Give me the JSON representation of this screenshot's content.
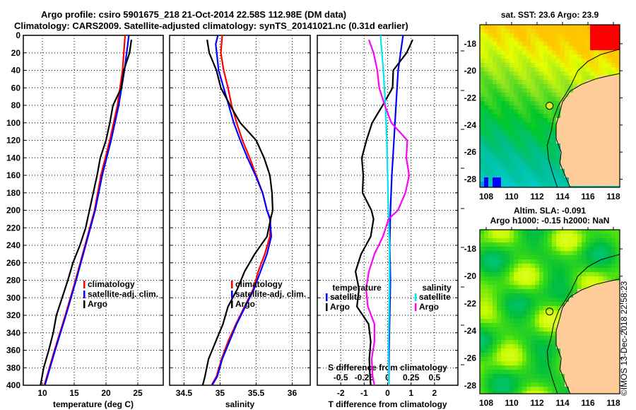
{
  "header": {
    "line1": "Argo profile: csiro 5901675_218 21-Oct-2014 22.58S 112.98E (DM data)",
    "line2": "Climatology: CARS2009. Satellite-adjusted climatology: synTS_20141021.nc (0.31d earlier)"
  },
  "colors": {
    "climatology": "#ff0000",
    "satellite": "#0000ff",
    "argo": "#000000",
    "salinity_satellite": "#00e5ee",
    "salinity_argo": "#ff00ff",
    "land": "#ffcc99"
  },
  "chart_data": [
    {
      "type": "line",
      "title": "",
      "xlabel": "temperature (deg C)",
      "ylabel": "",
      "xlim": [
        7,
        29
      ],
      "ylim": [
        400,
        0
      ],
      "xticks": [
        10,
        15,
        20,
        25
      ],
      "yticks": [
        0,
        20,
        40,
        60,
        80,
        100,
        120,
        140,
        160,
        180,
        200,
        220,
        240,
        260,
        280,
        300,
        320,
        340,
        360,
        380,
        400
      ],
      "grid": true,
      "legend_position": "center-right-lower",
      "legend": [
        "climatology",
        "satellite-adj. clim.",
        "Argo"
      ],
      "series": [
        {
          "name": "climatology",
          "color": "#ff0000",
          "depth": [
            0,
            40,
            80,
            120,
            160,
            200,
            240,
            280,
            320,
            360,
            400
          ],
          "values": [
            23.0,
            22.6,
            21.8,
            20.6,
            19.2,
            18.2,
            16.7,
            15.2,
            13.6,
            11.9,
            10.3
          ]
        },
        {
          "name": "satellite-adj. clim.",
          "color": "#0000ff",
          "depth": [
            0,
            40,
            80,
            120,
            160,
            200,
            240,
            280,
            320,
            360,
            400
          ],
          "values": [
            23.6,
            22.9,
            22.0,
            20.8,
            19.4,
            18.3,
            16.8,
            15.3,
            13.7,
            12.0,
            10.4
          ]
        },
        {
          "name": "Argo",
          "color": "#000000",
          "depth": [
            5,
            20,
            40,
            60,
            80,
            100,
            120,
            140,
            160,
            180,
            200,
            220,
            240,
            260,
            280,
            300,
            320,
            340,
            360,
            380,
            400
          ],
          "values": [
            24.0,
            23.7,
            22.8,
            22.4,
            21.1,
            20.6,
            20.0,
            19.1,
            18.6,
            18.0,
            17.4,
            16.8,
            15.9,
            14.8,
            14.0,
            13.1,
            12.2,
            11.7,
            11.0,
            10.2,
            9.7
          ]
        }
      ]
    },
    {
      "type": "line",
      "title": "",
      "xlabel": "salinity",
      "ylabel": "",
      "xlim": [
        34.3,
        36.25
      ],
      "ylim": [
        400,
        0
      ],
      "xticks": [
        34.5,
        35,
        35.5,
        36
      ],
      "grid": true,
      "legend_position": "center-right-lower",
      "legend": [
        "climatology",
        "satellite-adj. clim.",
        "Argo"
      ],
      "series": [
        {
          "name": "climatology",
          "color": "#ff0000",
          "depth": [
            0,
            20,
            40,
            60,
            80,
            100,
            120,
            140,
            160,
            180,
            200,
            210,
            230,
            250,
            270,
            290,
            310,
            330,
            350,
            370,
            390,
            400
          ],
          "values": [
            35.03,
            35.01,
            35.05,
            35.11,
            35.16,
            35.23,
            35.31,
            35.41,
            35.5,
            35.59,
            35.65,
            35.7,
            35.69,
            35.62,
            35.53,
            35.46,
            35.34,
            35.22,
            35.11,
            35.02,
            34.95,
            34.88
          ]
        },
        {
          "name": "satellite-adj. clim.",
          "color": "#0000ff",
          "depth": [
            0,
            10,
            40,
            60,
            80,
            100,
            120,
            140,
            160,
            180,
            200,
            210,
            230,
            250,
            270,
            290,
            310,
            330,
            350,
            370,
            390,
            400
          ],
          "values": [
            34.97,
            34.94,
            34.98,
            35.05,
            35.12,
            35.19,
            35.28,
            35.38,
            35.49,
            35.59,
            35.65,
            35.69,
            35.71,
            35.65,
            35.56,
            35.47,
            35.35,
            35.23,
            35.13,
            35.03,
            34.96,
            34.89
          ]
        },
        {
          "name": "Argo",
          "color": "#000000",
          "depth": [
            5,
            20,
            40,
            60,
            80,
            100,
            120,
            140,
            160,
            180,
            200,
            210,
            230,
            250,
            270,
            290,
            310,
            330,
            350,
            370,
            390,
            400
          ],
          "values": [
            34.82,
            34.85,
            34.95,
            35.01,
            35.14,
            35.28,
            35.5,
            35.61,
            35.69,
            35.72,
            35.73,
            35.7,
            35.65,
            35.48,
            35.34,
            35.24,
            35.11,
            35.04,
            34.94,
            34.84,
            34.79,
            34.76
          ]
        }
      ]
    },
    {
      "type": "line",
      "title": "",
      "xlabel": "T difference from climatology",
      "xlabel_secondary": "S difference from climatology",
      "xlim": [
        -3,
        3
      ],
      "xlim_secondary": [
        -0.75,
        0.75
      ],
      "ylim": [
        400,
        0
      ],
      "xticks": [
        -2,
        -1,
        0,
        1,
        2
      ],
      "xticks_secondary": [
        "-0.5",
        "-0.25",
        "0",
        "0.25",
        "0.5"
      ],
      "xticks_secondary_values": [
        -0.5,
        -0.25,
        0,
        0.25,
        0.5
      ],
      "grid": true,
      "legend_position": "lower",
      "legend_groups": [
        {
          "title": "temperature",
          "items": [
            "satellite",
            "Argo"
          ]
        },
        {
          "title": "salinity",
          "items": [
            "satellite",
            "Argo"
          ]
        }
      ],
      "series": [
        {
          "name": "temperature satellite",
          "axis": "T",
          "color": "#0000ff",
          "depth": [
            0,
            40,
            80,
            120,
            160,
            200,
            240,
            280,
            320,
            360,
            400
          ],
          "values": [
            0.66,
            0.45,
            0.36,
            0.27,
            0.18,
            0.12,
            0.09,
            0.12,
            0.09,
            0.06,
            0.06
          ]
        },
        {
          "name": "temperature Argo",
          "axis": "T",
          "color": "#000000",
          "depth": [
            5,
            20,
            40,
            60,
            80,
            100,
            120,
            140,
            160,
            180,
            200,
            210,
            230,
            250,
            270,
            290,
            310,
            330,
            350,
            370,
            390,
            400
          ],
          "values": [
            1.07,
            0.81,
            0.24,
            0.21,
            -0.21,
            -0.66,
            -0.9,
            -1.1,
            -1.04,
            -1.07,
            -0.69,
            -0.6,
            -0.72,
            -1.13,
            -1.37,
            -1.22,
            -1.31,
            -0.81,
            -0.72,
            -0.78,
            -0.75,
            -0.72
          ]
        },
        {
          "name": "salinity satellite",
          "axis": "S",
          "color": "#00e5ee",
          "depth": [
            0,
            40,
            80,
            120,
            160,
            200,
            240,
            280,
            320,
            360,
            400
          ],
          "values": [
            -0.076,
            -0.045,
            -0.023,
            -0.008,
            0.0,
            0.008,
            0.02,
            0.02,
            0.015,
            0.008,
            0.015
          ]
        },
        {
          "name": "salinity Argo",
          "axis": "S",
          "color": "#ff00ff",
          "depth": [
            5,
            20,
            40,
            60,
            80,
            100,
            120,
            140,
            160,
            180,
            200,
            210,
            230,
            250,
            270,
            290,
            310,
            330,
            350,
            370,
            390,
            400
          ],
          "values": [
            -0.2,
            -0.15,
            -0.11,
            -0.09,
            -0.03,
            0.04,
            0.21,
            0.2,
            0.23,
            0.19,
            0.11,
            0.01,
            -0.05,
            -0.14,
            -0.2,
            -0.23,
            -0.21,
            -0.14,
            -0.14,
            -0.17,
            -0.16,
            -0.14
          ]
        }
      ]
    },
    {
      "type": "heatmap",
      "title": "sat. SST: 23.6 Argo: 23.9",
      "xlim": [
        107.5,
        118.5
      ],
      "ylim": [
        -28.6,
        -16.6
      ],
      "xticks": [
        108,
        110,
        112,
        114,
        116,
        118
      ],
      "yticks": [
        -18,
        -20,
        -22,
        -24,
        -26,
        -28
      ],
      "marker": {
        "lon": 112.98,
        "lat": -22.58
      }
    },
    {
      "type": "heatmap",
      "title": "Altim. SLA: -0.091",
      "subtitle": "Argo h1000: -0.15 h2000: NaN",
      "xlim": [
        107.5,
        118.5
      ],
      "ylim": [
        -28.6,
        -16.6
      ],
      "xticks": [
        108,
        110,
        112,
        114,
        116,
        118
      ],
      "yticks": [
        -18,
        -20,
        -22,
        -24,
        -26,
        -28
      ],
      "marker": {
        "lon": 112.98,
        "lat": -22.58
      }
    }
  ],
  "credit": "©IMOS 13-Dec-2018 22:58:23"
}
